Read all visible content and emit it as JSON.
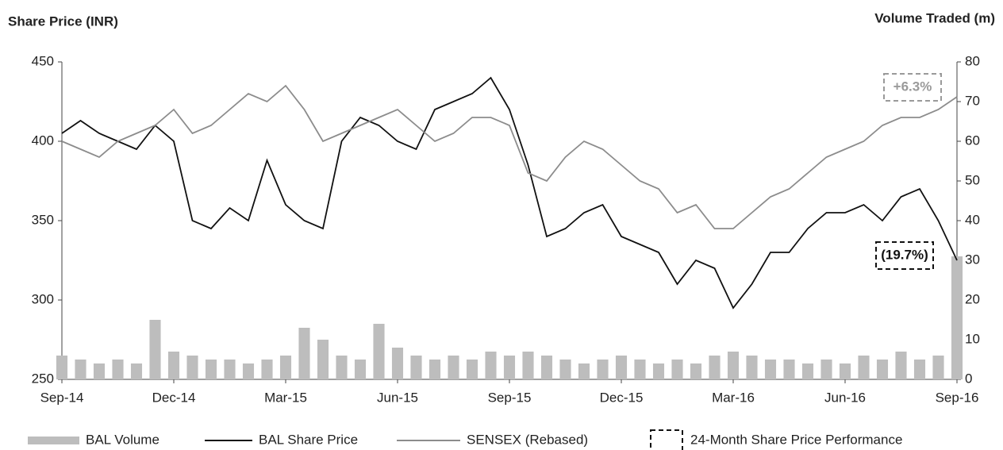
{
  "chart_data": {
    "type": "line",
    "y_label": "Share Price (INR)",
    "y2_label": "Volume Traded (m)",
    "categories": [
      "Sep-14",
      null,
      null,
      null,
      null,
      null,
      "Dec-14",
      null,
      null,
      null,
      null,
      null,
      "Mar-15",
      null,
      null,
      null,
      null,
      null,
      "Jun-15",
      null,
      null,
      null,
      null,
      null,
      "Sep-15",
      null,
      null,
      null,
      null,
      null,
      "Dec-15",
      null,
      null,
      null,
      null,
      null,
      "Mar-16",
      null,
      null,
      null,
      null,
      null,
      "Jun-16",
      null,
      null,
      null,
      null,
      null,
      "Sep-16"
    ],
    "series": [
      {
        "name": "BAL Volume",
        "type": "bar",
        "axis": "y2",
        "color": "#bdbdbd",
        "values": [
          6,
          5,
          4,
          5,
          4,
          15,
          7,
          6,
          5,
          5,
          4,
          5,
          6,
          13,
          10,
          6,
          5,
          14,
          8,
          6,
          5,
          6,
          5,
          7,
          6,
          7,
          6,
          5,
          4,
          5,
          6,
          5,
          4,
          5,
          4,
          6,
          7,
          6,
          5,
          5,
          4,
          5,
          4,
          6,
          5,
          7,
          5,
          6,
          31
        ]
      },
      {
        "name": "BAL Share Price",
        "type": "line",
        "color": "#111111",
        "values": [
          405,
          413,
          405,
          400,
          395,
          410,
          400,
          350,
          345,
          358,
          350,
          388,
          360,
          350,
          345,
          400,
          415,
          410,
          400,
          395,
          420,
          425,
          430,
          440,
          420,
          385,
          340,
          345,
          355,
          360,
          340,
          335,
          330,
          310,
          325,
          320,
          295,
          310,
          330,
          330,
          345,
          355,
          355,
          360,
          350,
          365,
          370,
          350,
          325
        ]
      },
      {
        "name": "SENSEX (Rebased)",
        "type": "line",
        "color": "#8c8c8c",
        "values": [
          400,
          395,
          390,
          400,
          405,
          410,
          420,
          405,
          410,
          420,
          430,
          425,
          435,
          420,
          400,
          405,
          410,
          415,
          420,
          410,
          400,
          405,
          415,
          415,
          410,
          380,
          375,
          390,
          400,
          395,
          385,
          375,
          370,
          355,
          360,
          345,
          345,
          355,
          365,
          370,
          380,
          390,
          395,
          400,
          410,
          415,
          415,
          420,
          428
        ]
      }
    ],
    "legend_box": "24-Month Share Price Performance",
    "annotations": [
      "+6.3%",
      "(19.7%)"
    ],
    "ylim": [
      250,
      450
    ],
    "yticks": [
      250,
      300,
      350,
      400,
      450
    ],
    "y2lim": [
      0,
      80
    ],
    "y2ticks": [
      0,
      10,
      20,
      30,
      40,
      50,
      60,
      70,
      80
    ],
    "grid": false
  }
}
